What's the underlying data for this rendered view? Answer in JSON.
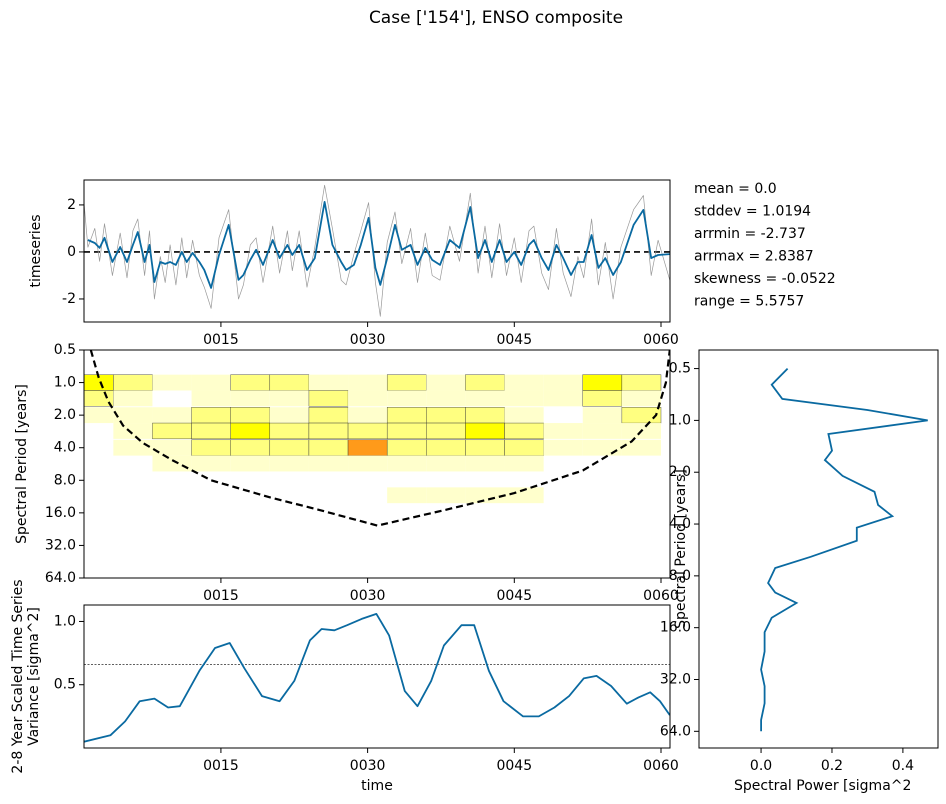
{
  "title": "Case ['154'], ENSO composite",
  "chart_data": [
    {
      "type": "line",
      "ylabel": "timeseries",
      "xlim": [
        1,
        60.92
      ],
      "ylim": [
        -2.98,
        3.06
      ],
      "xticks": [
        {
          "value": 15,
          "label": "0015"
        },
        {
          "value": 30,
          "label": "0030"
        },
        {
          "value": 45,
          "label": "0045"
        },
        {
          "value": 60,
          "label": "0060"
        }
      ],
      "yticks": [
        -2,
        0,
        2
      ],
      "hline": 0,
      "annotations": [
        "mean = 0.0",
        "stddev = 1.0194",
        "arrmin = -2.737",
        "arrmax = 2.8387",
        "skewness = -0.0522",
        "range = 5.5757"
      ],
      "series": [
        {
          "color": "#999999",
          "width": 0.7,
          "x": [
            1.0,
            1.4,
            2.1,
            2.6,
            3.1,
            3.9,
            4.7,
            5.4,
            6.0,
            6.5,
            7.2,
            7.7,
            8.2,
            8.8,
            9.3,
            9.8,
            10.4,
            11.0,
            11.5,
            12.1,
            12.8,
            13.3,
            14.0,
            14.8,
            15.8,
            16.8,
            17.3,
            18.0,
            18.6,
            19.3,
            20.3,
            21.0,
            21.8,
            22.3,
            23.0,
            23.8,
            24.6,
            25.6,
            26.4,
            27.3,
            27.8,
            28.6,
            29.3,
            30.1,
            30.8,
            31.3,
            32.0,
            32.8,
            33.5,
            34.4,
            35.1,
            35.9,
            36.6,
            37.4,
            38.4,
            39.4,
            40.5,
            41.3,
            42.0,
            42.7,
            43.5,
            44.2,
            45.0,
            45.7,
            46.5,
            47.0,
            47.8,
            48.5,
            49.3,
            50.0,
            50.8,
            51.5,
            52.1,
            52.9,
            53.6,
            54.3,
            55.1,
            55.9,
            57.2,
            58.2,
            59.0,
            59.7,
            60.9
          ],
          "values": [
            2.1,
            0.2,
            1.0,
            -0.4,
            1.2,
            -1.0,
            0.8,
            -1.1,
            0.9,
            1.4,
            -1.0,
            0.9,
            -2.0,
            -0.2,
            -1.3,
            0.3,
            -1.4,
            0.6,
            -1.1,
            0.5,
            -1.0,
            -1.5,
            -2.4,
            0.6,
            1.8,
            -2.0,
            -1.4,
            0.3,
            0.6,
            -1.3,
            1.1,
            -0.9,
            0.9,
            -0.8,
            0.9,
            -1.5,
            0.2,
            2.84,
            1.0,
            -1.2,
            -1.4,
            -0.1,
            0.9,
            2.1,
            -1.3,
            -2.737,
            0.4,
            1.7,
            -0.5,
            1.0,
            -1.3,
            0.8,
            -1.0,
            -1.2,
            1.1,
            -0.4,
            2.5,
            -0.9,
            1.1,
            -1.1,
            1.2,
            -1.0,
            0.6,
            -1.3,
            0.9,
            1.1,
            -0.9,
            -1.6,
            1.0,
            -0.9,
            -1.9,
            -0.2,
            -1.1,
            1.4,
            -1.4,
            0.4,
            -2.0,
            0.2,
            1.8,
            2.4,
            -1.0,
            0.5,
            -1.2
          ]
        },
        {
          "color": "#0a6aa1",
          "width": 1.8,
          "x": [
            1.4,
            2.1,
            2.6,
            3.1,
            3.9,
            4.7,
            5.4,
            6.0,
            6.5,
            7.2,
            7.7,
            8.2,
            8.8,
            9.3,
            9.8,
            10.4,
            11.0,
            11.5,
            12.1,
            12.8,
            13.3,
            14.0,
            14.8,
            15.8,
            16.8,
            17.3,
            18.0,
            18.6,
            19.3,
            20.3,
            21.0,
            21.8,
            22.3,
            23.0,
            23.8,
            24.6,
            25.6,
            26.4,
            27.3,
            27.8,
            28.6,
            29.3,
            30.1,
            30.8,
            31.3,
            32.0,
            32.8,
            33.5,
            34.4,
            35.1,
            35.9,
            36.6,
            37.4,
            38.4,
            39.4,
            40.5,
            41.3,
            42.0,
            42.7,
            43.5,
            44.2,
            45.0,
            45.7,
            46.5,
            47.0,
            47.8,
            48.5,
            49.3,
            50.0,
            50.8,
            51.5,
            52.1,
            52.9,
            53.6,
            54.3,
            55.1,
            55.9,
            57.2,
            58.2,
            59.0,
            59.7,
            60.9
          ],
          "values": [
            0.51,
            0.38,
            0.17,
            0.6,
            -0.43,
            0.21,
            -0.43,
            0.3,
            0.85,
            -0.43,
            0.3,
            -1.28,
            -0.43,
            -0.51,
            -0.43,
            -0.55,
            0.0,
            -0.43,
            -0.04,
            -0.43,
            -0.77,
            -1.53,
            -0.13,
            1.15,
            -1.19,
            -0.98,
            -0.34,
            0.09,
            -0.55,
            0.51,
            -0.26,
            0.3,
            -0.13,
            0.3,
            -0.77,
            -0.26,
            2.13,
            0.3,
            -0.43,
            -0.77,
            -0.55,
            0.3,
            1.45,
            -0.68,
            -1.4,
            -0.26,
            1.15,
            0.09,
            0.3,
            -0.55,
            0.17,
            -0.34,
            -0.55,
            0.51,
            0.17,
            1.91,
            -0.26,
            0.51,
            -0.43,
            0.51,
            -0.43,
            0.0,
            -0.55,
            0.3,
            0.51,
            -0.26,
            -0.77,
            0.3,
            -0.26,
            -0.98,
            -0.43,
            -0.43,
            0.72,
            -0.68,
            -0.26,
            -0.98,
            -0.43,
            1.15,
            1.79,
            -0.26,
            -0.13,
            -0.09
          ]
        }
      ]
    },
    {
      "type": "contour",
      "ylabel": "Spectral Period [years]",
      "xlim": [
        1,
        60.92
      ],
      "ylim": [
        0.5,
        64
      ],
      "ylog": true,
      "yinvert": true,
      "xticks": [
        {
          "value": 15,
          "label": "0015"
        },
        {
          "value": 30,
          "label": "0030"
        },
        {
          "value": 45,
          "label": "0045"
        },
        {
          "value": 60,
          "label": "0060"
        }
      ],
      "yticks": [
        0.5,
        {
          "value": 1,
          "label": "1.0"
        },
        {
          "value": 2,
          "label": "2.0"
        },
        {
          "value": 4,
          "label": "4.0"
        },
        {
          "value": 8,
          "label": "8.0"
        },
        {
          "value": 16,
          "label": "16.0"
        },
        {
          "value": 32,
          "label": "32.0"
        },
        {
          "value": 64,
          "label": "64.0"
        }
      ],
      "times": [
        2,
        6,
        10,
        14,
        18,
        22,
        26,
        30,
        34,
        38,
        42,
        46,
        50,
        54,
        58
      ],
      "periods": [
        1,
        1.4,
        2,
        2.8,
        4,
        5.6,
        8,
        11
      ],
      "levels": [
        1,
        2,
        3,
        4
      ],
      "colors": [
        "#ffffcc",
        "#ffff80",
        "#ffff00",
        "#ff9a1a"
      ],
      "power": [
        [
          3,
          2,
          1,
          1,
          2,
          2,
          1,
          1,
          2,
          1,
          2,
          1,
          1,
          3,
          2
        ],
        [
          2,
          1,
          0,
          1,
          1,
          1,
          2,
          1,
          1,
          1,
          1,
          1,
          1,
          2,
          1
        ],
        [
          1,
          1,
          1,
          2,
          2,
          1,
          2,
          1,
          2,
          2,
          2,
          1,
          0,
          1,
          2
        ],
        [
          0,
          1,
          2,
          2,
          3,
          2,
          2,
          2,
          2,
          2,
          3,
          2,
          1,
          1,
          1
        ],
        [
          0,
          1,
          1,
          2,
          2,
          2,
          2,
          4,
          2,
          2,
          2,
          2,
          1,
          1,
          1
        ],
        [
          0,
          0,
          1,
          1,
          1,
          1,
          1,
          1,
          1,
          1,
          1,
          1,
          0,
          0,
          0
        ],
        [
          0,
          0,
          0,
          0,
          0,
          0,
          0,
          0,
          0,
          0,
          0,
          0,
          0,
          0,
          0
        ],
        [
          0,
          0,
          0,
          0,
          0,
          0,
          0,
          0,
          1,
          1,
          1,
          1,
          0,
          0,
          0
        ]
      ],
      "cone": {
        "x": [
          1.7,
          2.5,
          3.5,
          5,
          7,
          10,
          14,
          20,
          25,
          31,
          38,
          45,
          52,
          57,
          59.5,
          60.5,
          60.9
        ],
        "values": [
          0.5,
          0.9,
          1.5,
          2.5,
          3.6,
          5.2,
          8,
          11.5,
          15,
          21,
          15,
          10.5,
          6.5,
          3.5,
          2,
          1,
          0.5
        ]
      }
    },
    {
      "type": "line",
      "ylabel": [
        "2-8 Year Scaled Time Series",
        "Variance [sigma^2]"
      ],
      "xlabel": "time",
      "xlim": [
        1,
        60.92
      ],
      "ylim": [
        0,
        1.13
      ],
      "xticks": [
        {
          "value": 15,
          "label": "0015"
        },
        {
          "value": 30,
          "label": "0030"
        },
        {
          "value": 45,
          "label": "0045"
        },
        {
          "value": 60,
          "label": "0060"
        }
      ],
      "yticks": [
        0.5,
        {
          "value": 1,
          "label": "1.0"
        }
      ],
      "hline": 0.66,
      "series": [
        {
          "color": "#0a6aa1",
          "width": 1.8,
          "x": [
            1.0,
            3.7,
            5.2,
            6.7,
            8.2,
            9.6,
            10.8,
            12.8,
            14.4,
            15.9,
            17.4,
            19.2,
            21.0,
            22.5,
            24.1,
            25.3,
            26.6,
            27.9,
            29.4,
            30.9,
            32.2,
            33.8,
            35.1,
            36.5,
            37.8,
            39.6,
            40.9,
            42.4,
            43.9,
            45.9,
            47.5,
            49.1,
            50.6,
            52.1,
            53.4,
            54.9,
            56.5,
            57.7,
            58.9,
            59.9,
            60.9
          ],
          "values": [
            0.05,
            0.1,
            0.21,
            0.37,
            0.39,
            0.32,
            0.33,
            0.61,
            0.79,
            0.83,
            0.63,
            0.41,
            0.37,
            0.53,
            0.85,
            0.94,
            0.93,
            0.97,
            1.02,
            1.06,
            0.89,
            0.45,
            0.33,
            0.53,
            0.81,
            0.97,
            0.97,
            0.61,
            0.37,
            0.25,
            0.25,
            0.32,
            0.41,
            0.55,
            0.57,
            0.49,
            0.35,
            0.4,
            0.44,
            0.37,
            0.26
          ]
        }
      ]
    },
    {
      "type": "spectrum",
      "ylabel": "Spectral Period [years]",
      "xlabel": "Spectral Power [sigma^2",
      "xlim": [
        -0.175,
        0.499
      ],
      "ylim": [
        0.39,
        80
      ],
      "ylog": true,
      "yinvert": true,
      "xticks": [
        {
          "value": 0,
          "label": "0.0"
        },
        0.2,
        0.4
      ],
      "yticks": [
        0.5,
        {
          "value": 1,
          "label": "1.0"
        },
        {
          "value": 2,
          "label": "2.0"
        },
        {
          "value": 4,
          "label": "4.0"
        },
        {
          "value": 8,
          "label": "8.0"
        },
        {
          "value": 16,
          "label": "16.0"
        },
        {
          "value": 32,
          "label": "32.0"
        },
        {
          "value": 64,
          "label": "64.0"
        }
      ],
      "series": [
        {
          "color": "#0a6aa1",
          "width": 1.8,
          "periods": [
            0.5,
            0.62,
            0.75,
            0.87,
            1.0,
            1.2,
            1.5,
            1.7,
            2.1,
            2.6,
            3.1,
            3.6,
            4.2,
            5.0,
            6.2,
            7.2,
            8.8,
            10,
            11.5,
            14,
            17,
            22,
            28,
            35,
            44,
            55,
            64
          ],
          "values": [
            0.075,
            0.03,
            0.06,
            0.3,
            0.47,
            0.19,
            0.2,
            0.18,
            0.23,
            0.32,
            0.33,
            0.37,
            0.27,
            0.27,
            0.14,
            0.04,
            0.02,
            0.04,
            0.1,
            0.03,
            0.01,
            0.01,
            0.0,
            0.01,
            0.01,
            0.0,
            0.0
          ]
        }
      ]
    }
  ]
}
